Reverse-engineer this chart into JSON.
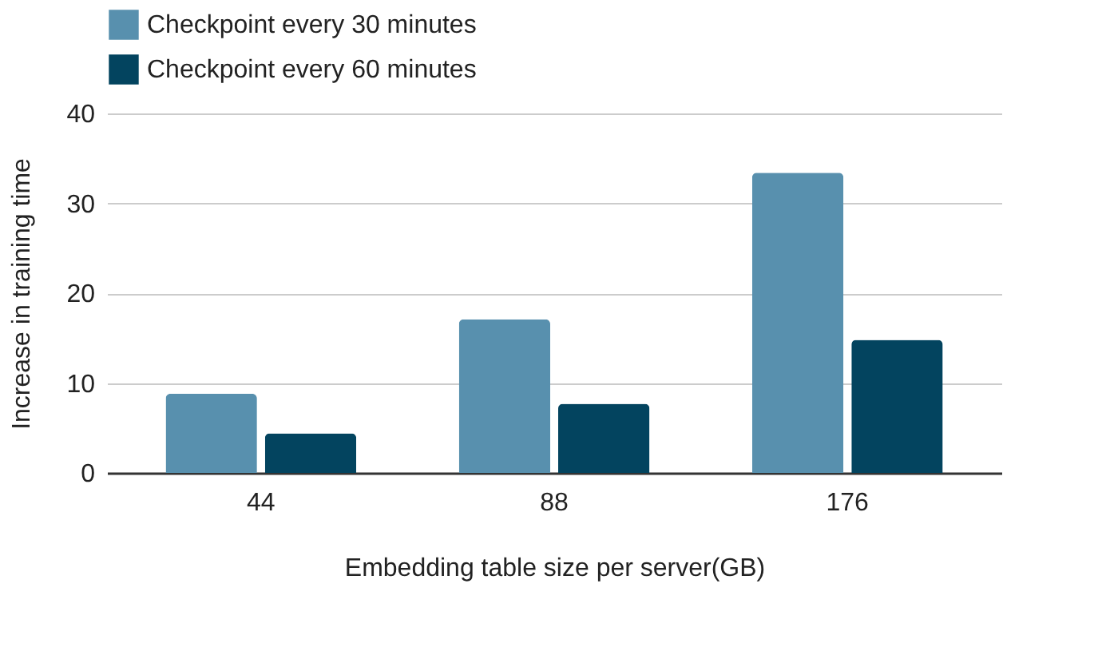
{
  "chart_data": {
    "type": "bar",
    "xlabel": "Embedding table size per server(GB)",
    "ylabel": "Increase in training time",
    "categories": [
      "44",
      "88",
      "176"
    ],
    "series": [
      {
        "name": "Checkpoint every 30 minutes",
        "color": "#5890ae",
        "values": [
          8.8,
          17.1,
          33.4
        ]
      },
      {
        "name": "Checkpoint every 60 minutes",
        "color": "#03445f",
        "values": [
          4.4,
          7.7,
          14.8
        ]
      }
    ],
    "ylim": [
      0,
      40
    ],
    "yticks": [
      0,
      10,
      20,
      30,
      40
    ],
    "grid": "y",
    "legend": "top"
  }
}
